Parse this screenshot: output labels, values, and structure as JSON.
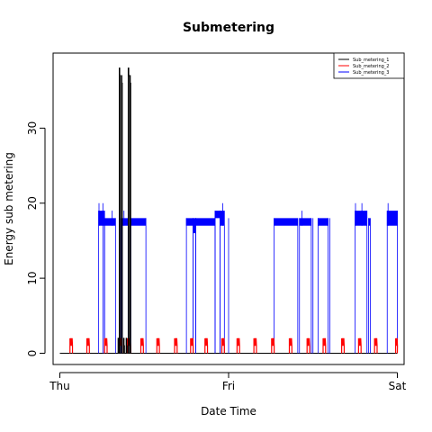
{
  "chart_data": {
    "type": "line",
    "title": "Submetering",
    "xlabel": "Date Time",
    "ylabel": "Energy sub metering",
    "x_ticks": [
      "Thu",
      "Fri",
      "Sat"
    ],
    "x_tick_values": [
      0,
      1,
      2
    ],
    "xlim": [
      -0.04,
      2.04
    ],
    "y_ticks": [
      "0",
      "10",
      "20",
      "30"
    ],
    "y_tick_values": [
      0,
      10,
      20,
      30
    ],
    "ylim": [
      -1.5,
      40
    ],
    "grid": false,
    "legend_position": "top-right",
    "series": [
      {
        "name": "Sub_metering_1",
        "color": "#000000",
        "bursts": [
          {
            "start": 0.345,
            "end": 0.35,
            "peak": 2
          },
          {
            "start": 0.352,
            "end": 0.358,
            "peak": 38
          },
          {
            "start": 0.365,
            "end": 0.37,
            "peak": 37
          },
          {
            "start": 0.378,
            "end": 0.383,
            "peak": 2
          },
          {
            "start": 0.393,
            "end": 0.398,
            "peak": 2
          },
          {
            "start": 0.405,
            "end": 0.412,
            "peak": 38
          },
          {
            "start": 0.415,
            "end": 0.42,
            "peak": 37
          }
        ]
      },
      {
        "name": "Sub_metering_2",
        "color": "#ff0000",
        "bursts": [
          {
            "start": 0.06,
            "end": 0.075,
            "peak": 2
          },
          {
            "start": 0.16,
            "end": 0.175,
            "peak": 2
          },
          {
            "start": 0.265,
            "end": 0.28,
            "peak": 2
          },
          {
            "start": 0.35,
            "end": 0.37,
            "peak": 2
          },
          {
            "start": 0.4,
            "end": 0.42,
            "peak": 2
          },
          {
            "start": 0.48,
            "end": 0.495,
            "peak": 2
          },
          {
            "start": 0.575,
            "end": 0.59,
            "peak": 2
          },
          {
            "start": 0.68,
            "end": 0.695,
            "peak": 2
          },
          {
            "start": 0.775,
            "end": 0.79,
            "peak": 2
          },
          {
            "start": 0.86,
            "end": 0.875,
            "peak": 2
          },
          {
            "start": 0.96,
            "end": 0.975,
            "peak": 2
          },
          {
            "start": 1.05,
            "end": 1.065,
            "peak": 2
          },
          {
            "start": 1.15,
            "end": 1.165,
            "peak": 2
          },
          {
            "start": 1.255,
            "end": 1.27,
            "peak": 2
          },
          {
            "start": 1.36,
            "end": 1.375,
            "peak": 2
          },
          {
            "start": 1.465,
            "end": 1.48,
            "peak": 2
          },
          {
            "start": 1.56,
            "end": 1.575,
            "peak": 2
          },
          {
            "start": 1.67,
            "end": 1.685,
            "peak": 2
          },
          {
            "start": 1.77,
            "end": 1.785,
            "peak": 2
          },
          {
            "start": 1.865,
            "end": 1.88,
            "peak": 2
          },
          {
            "start": 1.99,
            "end": 2.0,
            "peak": 2
          }
        ]
      },
      {
        "name": "Sub_metering_3",
        "color": "#0000ff",
        "bands": [
          {
            "start": 0.23,
            "end": 0.265,
            "low": 17,
            "high": 19,
            "spikes": [
              0.232,
              0.255
            ]
          },
          {
            "start": 0.265,
            "end": 0.33,
            "low": 17,
            "high": 18,
            "spikes": [
              0.31
            ]
          },
          {
            "start": 0.37,
            "end": 0.405,
            "low": 17,
            "high": 18,
            "spikes": [
              0.38
            ]
          },
          {
            "start": 0.42,
            "end": 0.51,
            "low": 17,
            "high": 18,
            "spikes": []
          },
          {
            "start": 0.75,
            "end": 0.79,
            "low": 17,
            "high": 18,
            "spikes": []
          },
          {
            "start": 0.79,
            "end": 0.805,
            "low": 16,
            "high": 18,
            "spikes": []
          },
          {
            "start": 0.805,
            "end": 0.92,
            "low": 17,
            "high": 18,
            "spikes": []
          },
          {
            "start": 0.92,
            "end": 0.95,
            "low": 18,
            "high": 19,
            "spikes": []
          },
          {
            "start": 0.95,
            "end": 0.975,
            "low": 17,
            "high": 19,
            "spikes": [
              0.965
            ]
          },
          {
            "start": 1.27,
            "end": 1.41,
            "low": 17,
            "high": 18,
            "spikes": []
          },
          {
            "start": 1.42,
            "end": 1.49,
            "low": 17,
            "high": 18,
            "spikes": [
              1.435
            ]
          },
          {
            "start": 1.53,
            "end": 1.59,
            "low": 17,
            "high": 18,
            "spikes": []
          },
          {
            "start": 1.75,
            "end": 1.82,
            "low": 17,
            "high": 19,
            "spikes": [
              1.752,
              1.79
            ]
          },
          {
            "start": 1.83,
            "end": 1.84,
            "low": 17,
            "high": 18,
            "spikes": []
          },
          {
            "start": 1.94,
            "end": 2.0,
            "low": 17,
            "high": 19,
            "spikes": [
              1.945
            ]
          }
        ],
        "drops": [
          {
            "x": 0.255,
            "low": 0,
            "high": 18
          },
          {
            "x": 0.36,
            "low": 0,
            "high": 18
          },
          {
            "x": 1.0,
            "low": 0,
            "high": 18
          },
          {
            "x": 1.5,
            "low": 0,
            "high": 18
          },
          {
            "x": 1.6,
            "low": 0,
            "high": 18
          }
        ]
      }
    ]
  }
}
